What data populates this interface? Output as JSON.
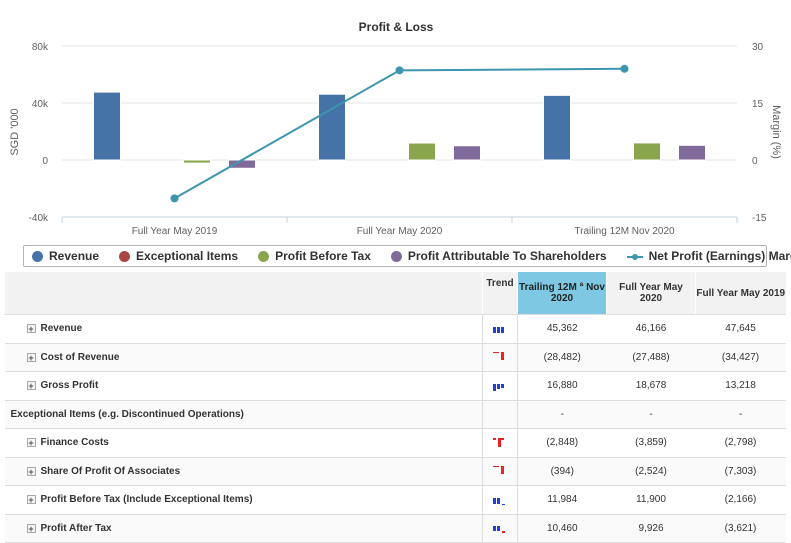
{
  "chart_data": {
    "type": "bar",
    "title": "Profit & Loss",
    "ylabel": "SGD '000",
    "y2label": "Margin (%)",
    "ylim": [
      -40000,
      80000
    ],
    "yticks": [
      -40000,
      0,
      40000,
      80000
    ],
    "ytick_labels": [
      "-40k",
      "0",
      "40k",
      "80k"
    ],
    "y2lim": [
      -15,
      30
    ],
    "y2ticks": [
      -15,
      0,
      15,
      30
    ],
    "y2tick_labels": [
      "-15",
      "0",
      "15",
      "30"
    ],
    "categories": [
      "Full Year May 2019",
      "Full Year May 2020",
      "Trailing 12M Nov 2020"
    ],
    "legend_position": "bottom",
    "series": [
      {
        "name": "Revenue",
        "type": "bar",
        "color": "#4572a7",
        "values": [
          47645,
          46166,
          45362
        ]
      },
      {
        "name": "Exceptional Items",
        "type": "bar",
        "color": "#aa4643",
        "values": [
          0,
          0,
          0
        ]
      },
      {
        "name": "Profit Before Tax",
        "type": "bar",
        "color": "#89a54e",
        "values": [
          -2166,
          11900,
          11984
        ]
      },
      {
        "name": "Profit Attributable To Shareholders",
        "type": "bar",
        "color": "#80699b",
        "values": [
          -5800,
          10000,
          10300
        ]
      },
      {
        "name": "Net Profit (Earnings) Margin [%]",
        "type": "line",
        "axis": "right",
        "color": "#3d96ae",
        "values": [
          -10.1,
          23.6,
          24.0
        ]
      }
    ]
  },
  "table": {
    "header": {
      "trend": "Trend",
      "cols": [
        "Trailing 12M ª Nov 2020",
        "Full Year May 2020",
        "Full Year May 2019"
      ],
      "selected_col": 0
    },
    "rows": [
      {
        "label": "Revenue",
        "expandable": true,
        "values": [
          "45,362",
          "46,166",
          "47,645"
        ],
        "trend": "up-blue"
      },
      {
        "label": "Cost of Revenue",
        "expandable": true,
        "values": [
          "(28,482)",
          "(27,488)",
          "(34,427)"
        ],
        "trend": "red-neg"
      },
      {
        "label": "Gross Profit",
        "expandable": true,
        "values": [
          "16,880",
          "18,678",
          "13,218"
        ],
        "trend": "blue-mixed"
      },
      {
        "label": "Exceptional Items (e.g. Discontinued Operations)",
        "expandable": false,
        "values": [
          "-",
          "-",
          "-"
        ],
        "trend": "none"
      },
      {
        "label": "Finance Costs",
        "expandable": true,
        "values": [
          "(2,848)",
          "(3,859)",
          "(2,798)"
        ],
        "trend": "red-neg2"
      },
      {
        "label": "Share Of Profit Of Associates",
        "expandable": true,
        "values": [
          "(394)",
          "(2,524)",
          "(7,303)"
        ],
        "trend": "red-neg"
      },
      {
        "label": "Profit Before Tax (Include Exceptional Items)",
        "expandable": true,
        "values": [
          "11,984",
          "11,900",
          "(2,166)"
        ],
        "trend": "blue-neg-last"
      },
      {
        "label": "Profit After Tax",
        "expandable": true,
        "values": [
          "10,460",
          "9,926",
          "(3,621)"
        ],
        "trend": "blue-redneg"
      }
    ],
    "expand_glyph": "+"
  }
}
